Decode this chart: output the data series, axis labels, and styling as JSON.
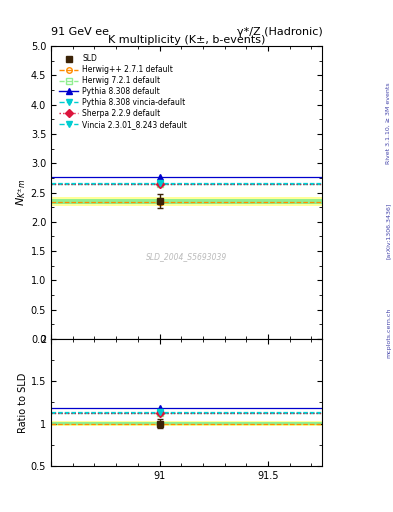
{
  "title_left": "91 GeV ee",
  "title_right": "γ*/Z (Hadronic)",
  "plot_title": "K multiplicity (K±, b-events)",
  "ylabel_main": "$N_{K^{\\pm}m}$",
  "ylabel_ratio": "Ratio to SLD",
  "watermark": "SLD_2004_S5693039",
  "rivet_label": "Rivet 3.1.10, ≥ 3M events",
  "arxiv_label": "[arXiv:1306.3436]",
  "mcplots_label": "mcplots.cern.ch",
  "xmin": 90.5,
  "xmax": 91.75,
  "ymin_main": 0.0,
  "ymax_main": 5.0,
  "ymin_ratio": 0.5,
  "ymax_ratio": 2.0,
  "x_data": 91.0,
  "sld_value": 2.35,
  "sld_error": 0.12,
  "mc_lines": [
    {
      "label": "Herwig++ 2.7.1 default",
      "value": 2.34,
      "color": "#FF8C00",
      "linestyle": "--",
      "marker": "o",
      "mfc": "none",
      "mec": "#FF8C00"
    },
    {
      "label": "Herwig 7.2.1 default",
      "value": 2.65,
      "color": "#90EE90",
      "linestyle": "--",
      "marker": "s",
      "mfc": "none",
      "mec": "#90EE90"
    },
    {
      "label": "Pythia 8.308 default",
      "value": 2.77,
      "color": "#0000CD",
      "linestyle": "-",
      "marker": "^",
      "mfc": "#0000CD",
      "mec": "#0000CD"
    },
    {
      "label": "Pythia 8.308 vincia-default",
      "value": 2.65,
      "color": "#00CED1",
      "linestyle": "--",
      "marker": "v",
      "mfc": "#00CED1",
      "mec": "#00CED1"
    },
    {
      "label": "Sherpa 2.2.9 default",
      "value": 2.65,
      "color": "#DC143C",
      "linestyle": ":",
      "marker": "D",
      "mfc": "#DC143C",
      "mec": "#DC143C"
    },
    {
      "label": "Vincia 2.3.01_8.243 default",
      "value": 2.66,
      "color": "#00CED1",
      "linestyle": "--",
      "marker": "v",
      "mfc": "#00CED1",
      "mec": "#00CED1"
    }
  ],
  "sld_band_main": [
    {
      "halfwidth": 0.08,
      "color": "#FFFF99"
    },
    {
      "halfwidth": 0.04,
      "color": "#90EE90"
    }
  ],
  "sld_band_ratio": [
    {
      "halfwidth": 0.034,
      "color": "#FFFF99"
    },
    {
      "halfwidth": 0.017,
      "color": "#90EE90"
    }
  ],
  "yticks_main": [
    0.0,
    0.5,
    1.0,
    1.5,
    2.0,
    2.5,
    3.0,
    3.5,
    4.0,
    4.5,
    5.0
  ],
  "yticks_ratio": [
    0.5,
    1.0,
    1.5,
    2.0
  ],
  "xtick_positions": [
    90.5,
    91.0,
    91.5
  ],
  "xtick_labels": [
    "",
    "91",
    "91.5"
  ]
}
